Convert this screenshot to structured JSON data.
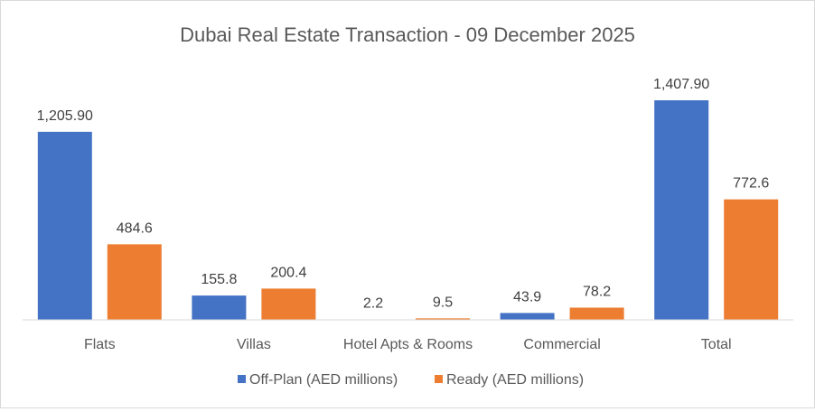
{
  "chart_data": {
    "type": "bar",
    "title": "Dubai Real Estate Transaction - 09 December 2025",
    "xlabel": "",
    "ylabel": "",
    "categories": [
      "Flats",
      "Villas",
      "Hotel Apts & Rooms",
      "Commercial",
      "Total"
    ],
    "series": [
      {
        "name": "Off-Plan (AED millions)",
        "color": "#4472C4",
        "values": [
          1205.9,
          155.8,
          2.2,
          43.9,
          1407.9
        ],
        "labels": [
          "1,205.90",
          "155.8",
          "2.2",
          "43.9",
          "1,407.90"
        ]
      },
      {
        "name": "Ready (AED millions)",
        "color": "#ED7D31",
        "values": [
          484.6,
          200.4,
          9.5,
          78.2,
          772.6
        ],
        "labels": [
          "484.6",
          "200.4",
          "9.5",
          "78.2",
          "772.6"
        ]
      }
    ],
    "ylim": [
      0,
      1407.9
    ],
    "grid": false,
    "y_axis_visible": false,
    "legend_position": "bottom"
  }
}
